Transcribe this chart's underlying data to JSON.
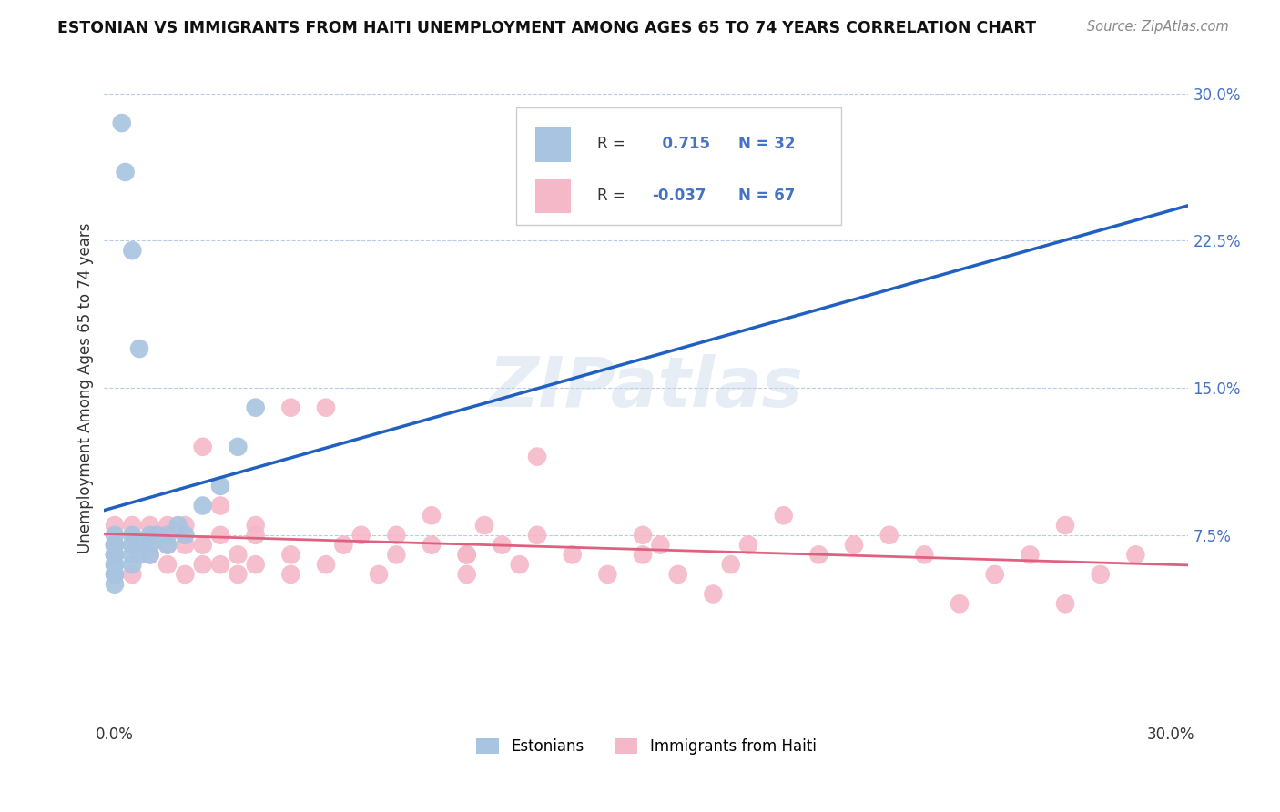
{
  "title": "ESTONIAN VS IMMIGRANTS FROM HAITI UNEMPLOYMENT AMONG AGES 65 TO 74 YEARS CORRELATION CHART",
  "source": "Source: ZipAtlas.com",
  "ylabel": "Unemployment Among Ages 65 to 74 years",
  "r_estonian": 0.715,
  "n_estonian": 32,
  "r_haiti": -0.037,
  "n_haiti": 67,
  "color_estonian": "#a8c4e0",
  "color_haiti": "#f4b8c8",
  "line_color_estonian": "#2060c0",
  "line_color_haiti": "#e06080",
  "legend_label_estonian": "Estonians",
  "legend_label_haiti": "Immigrants from Haiti",
  "watermark": "ZIPatlas",
  "xlim": [
    0.0,
    0.3
  ],
  "ylim": [
    -0.02,
    0.32
  ],
  "estonian_x": [
    0.0,
    0.0,
    0.0,
    0.0,
    0.0,
    0.0,
    0.0,
    0.0,
    0.0,
    0.0,
    0.005,
    0.005,
    0.005,
    0.005,
    0.007,
    0.007,
    0.01,
    0.01,
    0.01,
    0.012,
    0.015,
    0.015,
    0.018,
    0.02,
    0.025,
    0.03,
    0.035,
    0.04,
    0.007,
    0.005,
    0.003,
    0.002
  ],
  "estonian_y": [
    0.05,
    0.055,
    0.06,
    0.065,
    0.07,
    0.075,
    0.055,
    0.06,
    0.065,
    0.07,
    0.06,
    0.065,
    0.07,
    0.075,
    0.065,
    0.07,
    0.065,
    0.07,
    0.075,
    0.075,
    0.07,
    0.075,
    0.08,
    0.075,
    0.09,
    0.1,
    0.12,
    0.14,
    0.17,
    0.22,
    0.26,
    0.285
  ],
  "haiti_x": [
    0.0,
    0.0,
    0.0,
    0.005,
    0.005,
    0.005,
    0.01,
    0.01,
    0.01,
    0.015,
    0.015,
    0.015,
    0.02,
    0.02,
    0.02,
    0.025,
    0.025,
    0.025,
    0.03,
    0.03,
    0.035,
    0.035,
    0.04,
    0.04,
    0.05,
    0.05,
    0.06,
    0.06,
    0.065,
    0.07,
    0.075,
    0.08,
    0.09,
    0.09,
    0.1,
    0.1,
    0.105,
    0.11,
    0.115,
    0.12,
    0.13,
    0.14,
    0.15,
    0.155,
    0.16,
    0.17,
    0.175,
    0.18,
    0.19,
    0.2,
    0.21,
    0.22,
    0.23,
    0.24,
    0.25,
    0.26,
    0.27,
    0.27,
    0.28,
    0.29,
    0.03,
    0.04,
    0.05,
    0.08,
    0.1,
    0.12,
    0.15
  ],
  "haiti_y": [
    0.065,
    0.07,
    0.08,
    0.055,
    0.07,
    0.08,
    0.065,
    0.07,
    0.08,
    0.06,
    0.07,
    0.08,
    0.055,
    0.07,
    0.08,
    0.06,
    0.07,
    0.12,
    0.06,
    0.075,
    0.055,
    0.065,
    0.06,
    0.075,
    0.055,
    0.065,
    0.06,
    0.14,
    0.07,
    0.075,
    0.055,
    0.065,
    0.085,
    0.07,
    0.055,
    0.065,
    0.08,
    0.07,
    0.06,
    0.115,
    0.065,
    0.055,
    0.065,
    0.07,
    0.055,
    0.045,
    0.06,
    0.07,
    0.085,
    0.065,
    0.07,
    0.075,
    0.065,
    0.04,
    0.055,
    0.065,
    0.08,
    0.04,
    0.055,
    0.065,
    0.09,
    0.08,
    0.14,
    0.075,
    0.065,
    0.075,
    0.075
  ]
}
